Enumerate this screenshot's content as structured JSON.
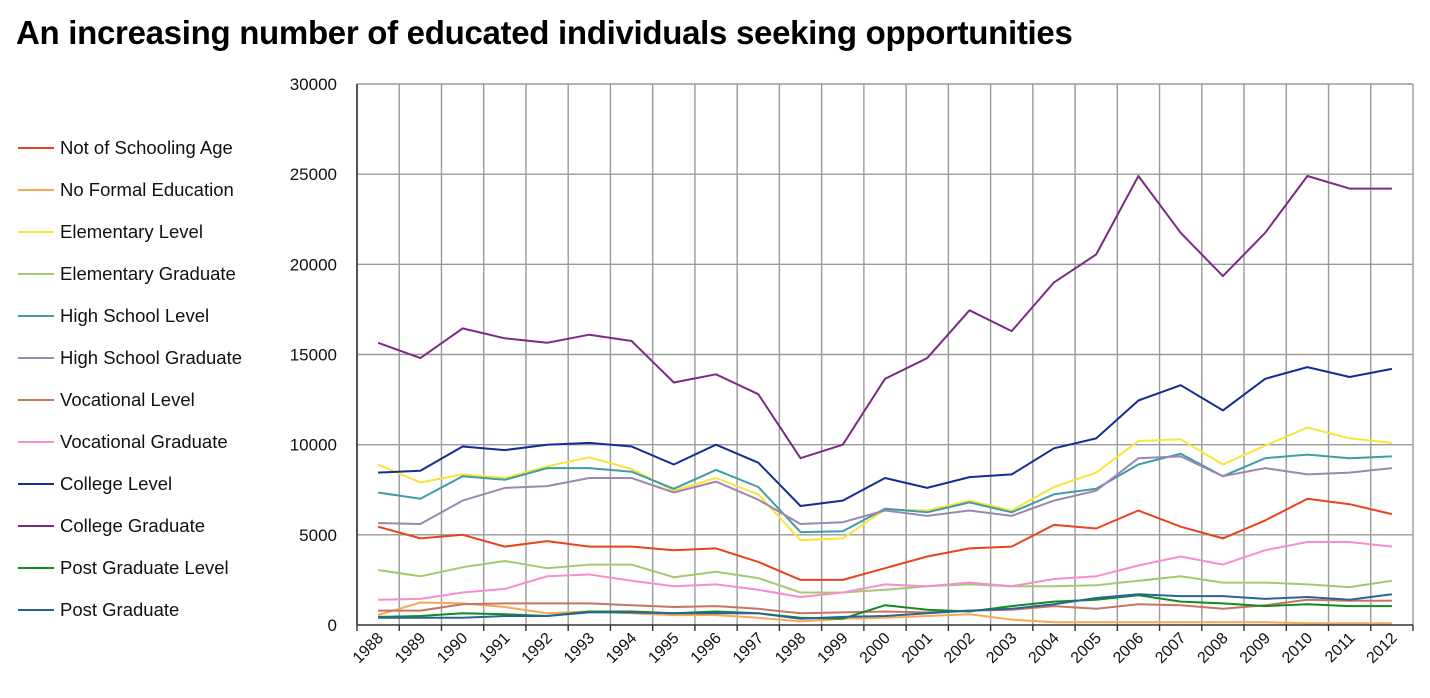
{
  "chart_data": {
    "type": "line",
    "title": "An increasing number of educated individuals seeking opportunities",
    "xlabel": "",
    "ylabel": "",
    "ylim": [
      0,
      30000
    ],
    "yticks": [
      "0",
      "5000",
      "10000",
      "15000",
      "20000",
      "25000",
      "30000"
    ],
    "grid": true,
    "legend_position": "left",
    "categories": [
      "1988",
      "1989",
      "1990",
      "1991",
      "1992",
      "1993",
      "1994",
      "1995",
      "1996",
      "1997",
      "1998",
      "1999",
      "2000",
      "2001",
      "2002",
      "2003",
      "2004",
      "2005",
      "2006",
      "2007",
      "2008",
      "2009",
      "2010",
      "2011",
      "2012"
    ],
    "series": [
      {
        "name": "Not of Schooling Age",
        "color": "#e8431f",
        "values": [
          5450,
          4800,
          5000,
          4350,
          4650,
          4350,
          4350,
          4150,
          4250,
          3500,
          2500,
          2500,
          3150,
          3800,
          4250,
          4350,
          5550,
          5350,
          6350,
          5450,
          4800,
          5800,
          7000,
          6700,
          6150
        ]
      },
      {
        "name": "No Formal Education",
        "color": "#f7a957",
        "values": [
          550,
          1250,
          1200,
          1000,
          650,
          750,
          650,
          550,
          550,
          400,
          200,
          350,
          400,
          500,
          600,
          300,
          150,
          150,
          150,
          150,
          150,
          150,
          100,
          100,
          100
        ]
      },
      {
        "name": "Elementary Level",
        "color": "#f8e43a",
        "values": [
          8900,
          7900,
          8350,
          8150,
          8800,
          9300,
          8650,
          7450,
          8150,
          7250,
          4700,
          4800,
          6400,
          6350,
          6900,
          6350,
          7650,
          8450,
          10200,
          10300,
          8900,
          9950,
          10950,
          10350,
          10100
        ]
      },
      {
        "name": "Elementary Graduate",
        "color": "#a5c86c",
        "values": [
          3050,
          2700,
          3200,
          3550,
          3150,
          3350,
          3350,
          2650,
          2950,
          2600,
          1800,
          1800,
          1950,
          2150,
          2250,
          2150,
          2150,
          2200,
          2450,
          2700,
          2350,
          2350,
          2250,
          2100,
          2450
        ]
      },
      {
        "name": "High School Level",
        "color": "#3e9ea4",
        "values": [
          7350,
          7000,
          8250,
          8050,
          8700,
          8700,
          8500,
          7550,
          8600,
          7650,
          5150,
          5200,
          6450,
          6250,
          6800,
          6250,
          7250,
          7550,
          8900,
          9500,
          8250,
          9250,
          9450,
          9250,
          9350
        ]
      },
      {
        "name": "High School Graduate",
        "color": "#9b87b3",
        "values": [
          5650,
          5600,
          6900,
          7600,
          7700,
          8150,
          8150,
          7350,
          7950,
          6950,
          5600,
          5700,
          6350,
          6050,
          6350,
          6050,
          6900,
          7450,
          9250,
          9350,
          8250,
          8700,
          8350,
          8450,
          8700
        ]
      },
      {
        "name": "Vocational Level",
        "color": "#c57561",
        "values": [
          800,
          800,
          1150,
          1200,
          1200,
          1200,
          1100,
          1000,
          1050,
          900,
          650,
          700,
          750,
          700,
          800,
          850,
          1050,
          900,
          1150,
          1100,
          900,
          1100,
          1400,
          1350,
          1350
        ]
      },
      {
        "name": "Vocational Graduate",
        "color": "#f48ed0",
        "values": [
          1400,
          1450,
          1800,
          2000,
          2700,
          2800,
          2450,
          2150,
          2250,
          1950,
          1550,
          1800,
          2250,
          2150,
          2350,
          2150,
          2550,
          2700,
          3300,
          3800,
          3350,
          4150,
          4600,
          4600,
          4350
        ]
      },
      {
        "name": "College Level",
        "color": "#132d93",
        "values": [
          8450,
          8550,
          9900,
          9700,
          10000,
          10100,
          9900,
          8900,
          10000,
          9000,
          6600,
          6900,
          8150,
          7600,
          8200,
          8350,
          9800,
          10350,
          12450,
          13300,
          11900,
          13650,
          14300,
          13750,
          14200
        ]
      },
      {
        "name": "College Graduate",
        "color": "#7a2c82",
        "values": [
          15650,
          14800,
          16450,
          15900,
          15650,
          16100,
          15750,
          13450,
          13900,
          12800,
          9250,
          10000,
          13650,
          14800,
          17450,
          16300,
          19000,
          20550,
          24900,
          21750,
          19350,
          21750,
          24900,
          24200,
          24200
        ]
      },
      {
        "name": "Post Graduate Level",
        "color": "#118b22",
        "values": [
          450,
          500,
          650,
          600,
          500,
          750,
          750,
          650,
          750,
          650,
          400,
          350,
          1100,
          850,
          750,
          1050,
          1300,
          1400,
          1650,
          1300,
          1200,
          1050,
          1150,
          1050,
          1050
        ]
      },
      {
        "name": "Post Graduate",
        "color": "#2a6496",
        "values": [
          400,
          400,
          400,
          500,
          500,
          700,
          700,
          650,
          650,
          650,
          350,
          450,
          500,
          650,
          800,
          900,
          1150,
          1500,
          1700,
          1600,
          1600,
          1450,
          1550,
          1400,
          1700
        ]
      }
    ]
  }
}
